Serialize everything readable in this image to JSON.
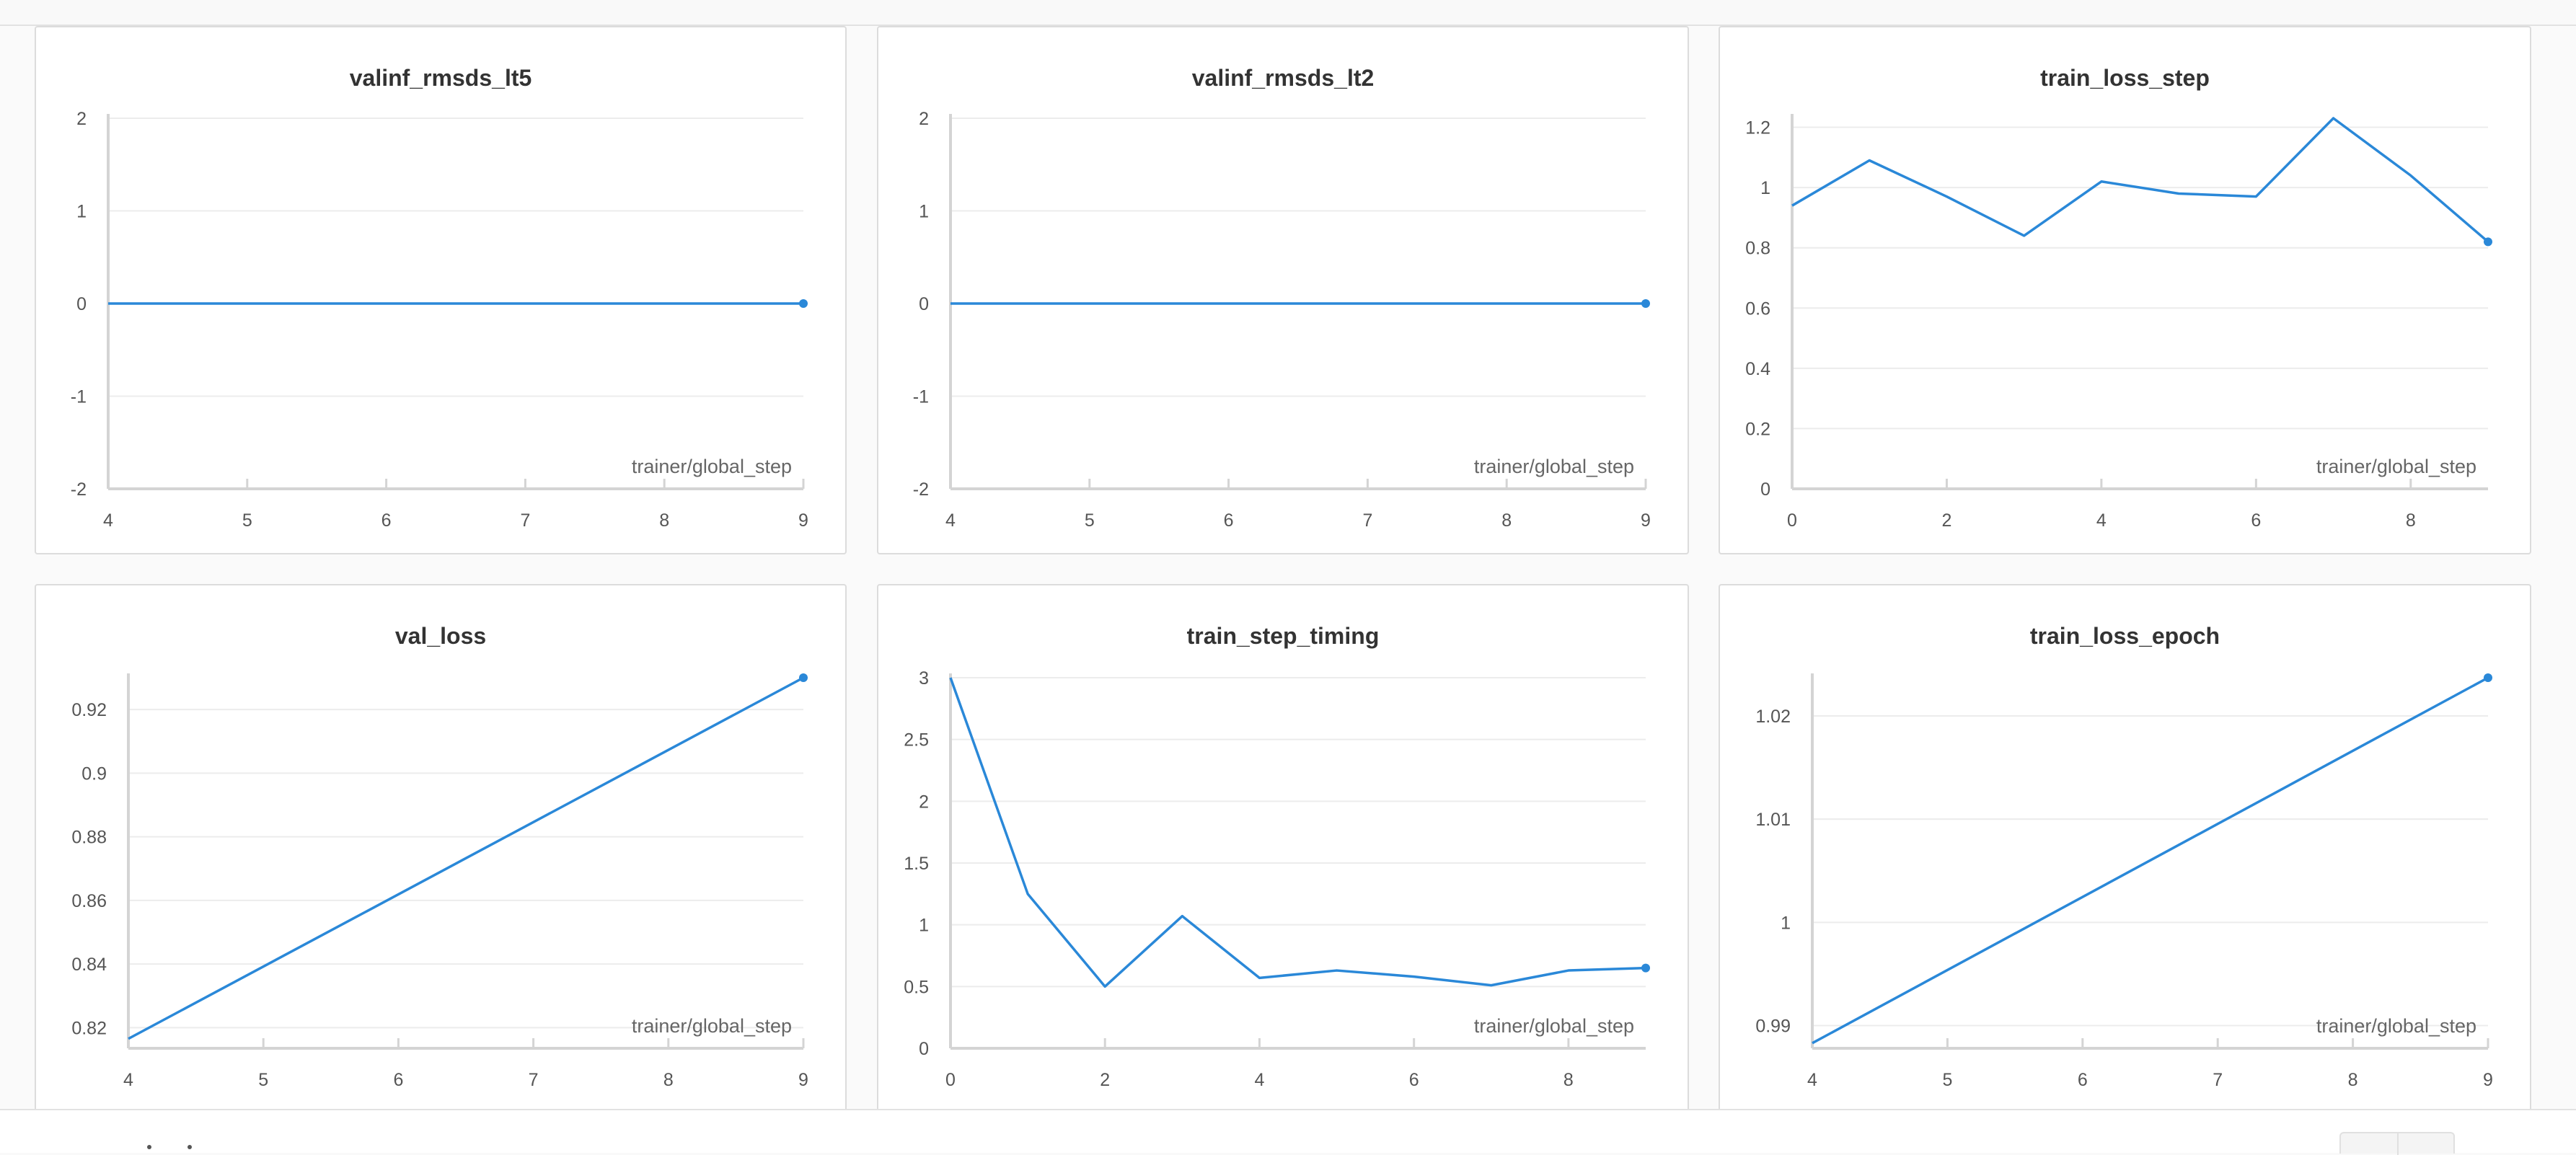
{
  "colors": {
    "line": "#2a88d8",
    "grid": "#ececec",
    "axis": "#d4d4d4",
    "tick_text": "#555555",
    "title": "#333333"
  },
  "chart_data": [
    {
      "type": "line",
      "title": "valinf_rmsds_lt5",
      "xlabel": "trainer/global_step",
      "x": [
        4,
        9
      ],
      "series": [
        {
          "values": [
            0,
            0
          ]
        }
      ],
      "xlim": [
        4,
        9
      ],
      "ylim": [
        -2,
        2
      ],
      "xticks": [
        4,
        5,
        6,
        7,
        8,
        9
      ],
      "yticks": [
        -2,
        -1,
        0,
        1,
        2
      ],
      "ytick_labels": [
        "-2",
        "-1",
        "0",
        "1",
        "2"
      ],
      "grid": true
    },
    {
      "type": "line",
      "title": "valinf_rmsds_lt2",
      "xlabel": "trainer/global_step",
      "x": [
        4,
        9
      ],
      "series": [
        {
          "values": [
            0,
            0
          ]
        }
      ],
      "xlim": [
        4,
        9
      ],
      "ylim": [
        -2,
        2
      ],
      "xticks": [
        4,
        5,
        6,
        7,
        8,
        9
      ],
      "yticks": [
        -2,
        -1,
        0,
        1,
        2
      ],
      "ytick_labels": [
        "-2",
        "-1",
        "0",
        "1",
        "2"
      ],
      "grid": true
    },
    {
      "type": "line",
      "title": "train_loss_step",
      "xlabel": "trainer/global_step",
      "x": [
        0,
        1,
        2,
        3,
        4,
        5,
        6,
        7,
        8,
        9
      ],
      "series": [
        {
          "values": [
            0.94,
            1.09,
            0.97,
            0.84,
            1.02,
            0.98,
            0.97,
            1.23,
            1.04,
            0.82
          ]
        }
      ],
      "xlim": [
        0,
        9
      ],
      "ylim": [
        0,
        1.23
      ],
      "xticks": [
        0,
        2,
        4,
        6,
        8
      ],
      "yticks": [
        0,
        0.2,
        0.4,
        0.6,
        0.8,
        1,
        1.2
      ],
      "ytick_labels": [
        "0",
        "0.2",
        "0.4",
        "0.6",
        "0.8",
        "1",
        "1.2"
      ],
      "grid": true
    },
    {
      "type": "line",
      "title": "val_loss",
      "xlabel": "trainer/global_step",
      "x": [
        4,
        9
      ],
      "series": [
        {
          "values": [
            0.8165,
            0.93
          ]
        }
      ],
      "xlim": [
        4,
        9
      ],
      "ylim": [
        0.8135,
        0.93
      ],
      "xticks": [
        4,
        5,
        6,
        7,
        8,
        9
      ],
      "yticks": [
        0.82,
        0.84,
        0.86,
        0.88,
        0.9,
        0.92
      ],
      "ytick_labels": [
        "0.82",
        "0.84",
        "0.86",
        "0.88",
        "0.9",
        "0.92"
      ],
      "grid": true
    },
    {
      "type": "line",
      "title": "train_step_timing",
      "xlabel": "trainer/global_step",
      "x": [
        0,
        1,
        2,
        3,
        4,
        5,
        6,
        7,
        8,
        9
      ],
      "series": [
        {
          "values": [
            3.0,
            1.25,
            0.5,
            1.07,
            0.57,
            0.63,
            0.58,
            0.51,
            0.63,
            0.65
          ]
        }
      ],
      "xlim": [
        0,
        9
      ],
      "ylim": [
        0,
        3
      ],
      "xticks": [
        0,
        2,
        4,
        6,
        8
      ],
      "yticks": [
        0,
        0.5,
        1,
        1.5,
        2,
        2.5,
        3
      ],
      "ytick_labels": [
        "0",
        "0.5",
        "1",
        "1.5",
        "2",
        "2.5",
        "3"
      ],
      "grid": true
    },
    {
      "type": "line",
      "title": "train_loss_epoch",
      "xlabel": "trainer/global_step",
      "x": [
        4,
        9
      ],
      "series": [
        {
          "values": [
            0.9883,
            1.0237
          ]
        }
      ],
      "xlim": [
        4,
        9
      ],
      "ylim": [
        0.9878,
        1.0237
      ],
      "xticks": [
        4,
        5,
        6,
        7,
        8,
        9
      ],
      "yticks": [
        0.99,
        1,
        1.01,
        1.02
      ],
      "ytick_labels": [
        "0.99",
        "1",
        "1.01",
        "1.02"
      ],
      "grid": true
    }
  ]
}
